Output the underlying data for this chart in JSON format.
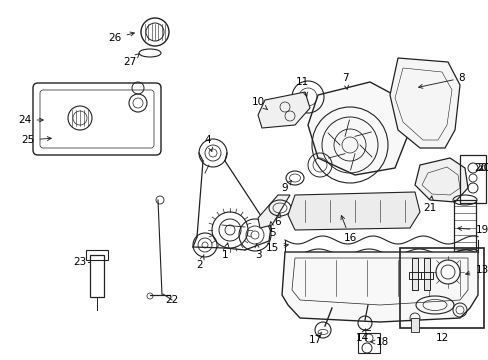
{
  "bg_color": "#ffffff",
  "line_color": "#222222",
  "text_color": "#000000",
  "fig_width": 4.89,
  "fig_height": 3.6,
  "dpi": 100
}
